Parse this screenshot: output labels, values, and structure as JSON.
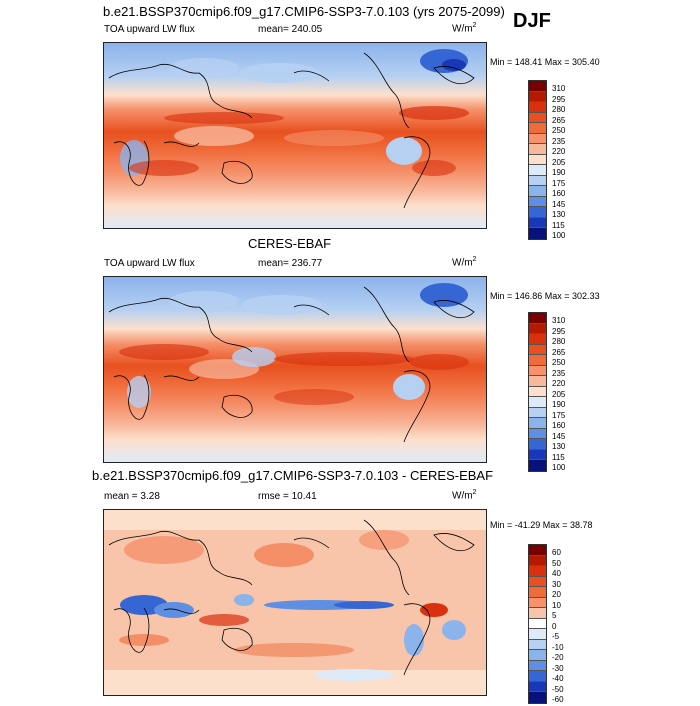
{
  "header": {
    "title": "b.e21.BSSP370cmip6.f09_g17.CMIP6-SSP3-7.0.103 (yrs 2075-2099)",
    "season": "DJF"
  },
  "panels": [
    {
      "title": "",
      "left_label": "TOA upward LW flux",
      "center_label": "mean= 240.05",
      "units": "W/m",
      "units_sup": "2",
      "minmax": "Min = 148.41  Max = 305.40",
      "levels": [
        "310",
        "295",
        "280",
        "265",
        "250",
        "235",
        "220",
        "205",
        "190",
        "175",
        "160",
        "145",
        "130",
        "115",
        "100"
      ]
    },
    {
      "title": "CERES-EBAF",
      "left_label": "TOA upward LW flux",
      "center_label": "mean= 236.77",
      "units": "W/m",
      "units_sup": "2",
      "minmax": "Min = 146.86  Max = 302.33",
      "levels": [
        "310",
        "295",
        "280",
        "265",
        "250",
        "235",
        "220",
        "205",
        "190",
        "175",
        "160",
        "145",
        "130",
        "115",
        "100"
      ]
    },
    {
      "title": "b.e21.BSSP370cmip6.f09_g17.CMIP6-SSP3-7.0.103 - CERES-EBAF",
      "left_label": "mean =   3.28",
      "center_label": "rmse =  10.41",
      "units": "W/m",
      "units_sup": "2",
      "minmax": "Min = -41.29  Max =  38.78",
      "levels": [
        "60",
        "50",
        "40",
        "30",
        "20",
        "10",
        "5",
        "0",
        "-5",
        "-10",
        "-20",
        "-30",
        "-40",
        "-50",
        "-60"
      ]
    }
  ],
  "colors": {
    "abs_scale": [
      "#7a0000",
      "#b31a00",
      "#d9300e",
      "#e8501f",
      "#f06b3a",
      "#f5916b",
      "#f8b89c",
      "#fde0cc",
      "#dfeaf8",
      "#b6d0f2",
      "#8bb3ec",
      "#5f8fe3",
      "#3566d4",
      "#1838b8",
      "#07127a"
    ],
    "diff_scale": [
      "#7a0000",
      "#b31a00",
      "#d9300e",
      "#e8501f",
      "#f06b3a",
      "#f5916b",
      "#f8c4aa",
      "#ffffff",
      "#dfeaf8",
      "#b6d0f2",
      "#8bb3ec",
      "#5f8fe3",
      "#3566d4",
      "#1838b8",
      "#07127a"
    ]
  }
}
